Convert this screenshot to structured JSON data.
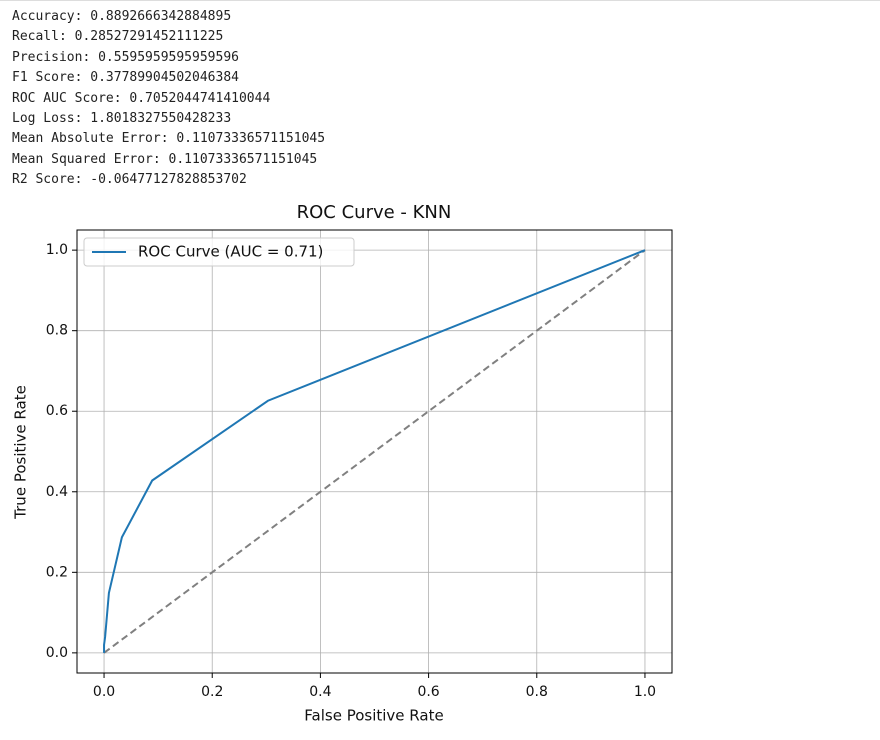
{
  "output_lines": [
    "Accuracy: 0.8892666342884895",
    "Recall: 0.28527291452111225",
    "Precision: 0.5595959595959596",
    "F1 Score: 0.37789904502046384",
    "ROC AUC Score: 0.7052044741410044",
    "Log Loss: 1.8018327550428233",
    "Mean Absolute Error: 0.11073336571151045",
    "Mean Squared Error: 0.11073336571151045",
    "R2 Score: -0.06477127828853702"
  ],
  "chart_data": {
    "type": "line",
    "title": "ROC Curve - KNN",
    "x_label": "False Positive Rate",
    "y_label": "True Positive Rate",
    "x": [
      0,
      0,
      0.002,
      0.009,
      0.033,
      0.089,
      0.303,
      1
    ],
    "series": [
      {
        "name": "ROC Curve (AUC = 0.71)",
        "color": "#1f77b4",
        "values": [
          0,
          0.02,
          0.04,
          0.149,
          0.287,
          0.428,
          0.626,
          1
        ]
      }
    ],
    "reference_line": {
      "x": [
        0,
        1
      ],
      "y": [
        0,
        1
      ],
      "color": "#808080",
      "dashed": true
    },
    "xlim": [
      -0.05,
      1.05
    ],
    "ylim": [
      -0.05,
      1.05
    ],
    "xticks": [
      {
        "value": 0,
        "label": "0.0"
      },
      0.2,
      0.4,
      0.6,
      0.8,
      {
        "value": 1,
        "label": "1.0"
      }
    ],
    "yticks": [
      {
        "value": 0,
        "label": "0.0"
      },
      0.2,
      0.4,
      0.6,
      0.8,
      {
        "value": 1,
        "label": "1.0"
      }
    ],
    "grid": true,
    "legend": "upper left"
  }
}
